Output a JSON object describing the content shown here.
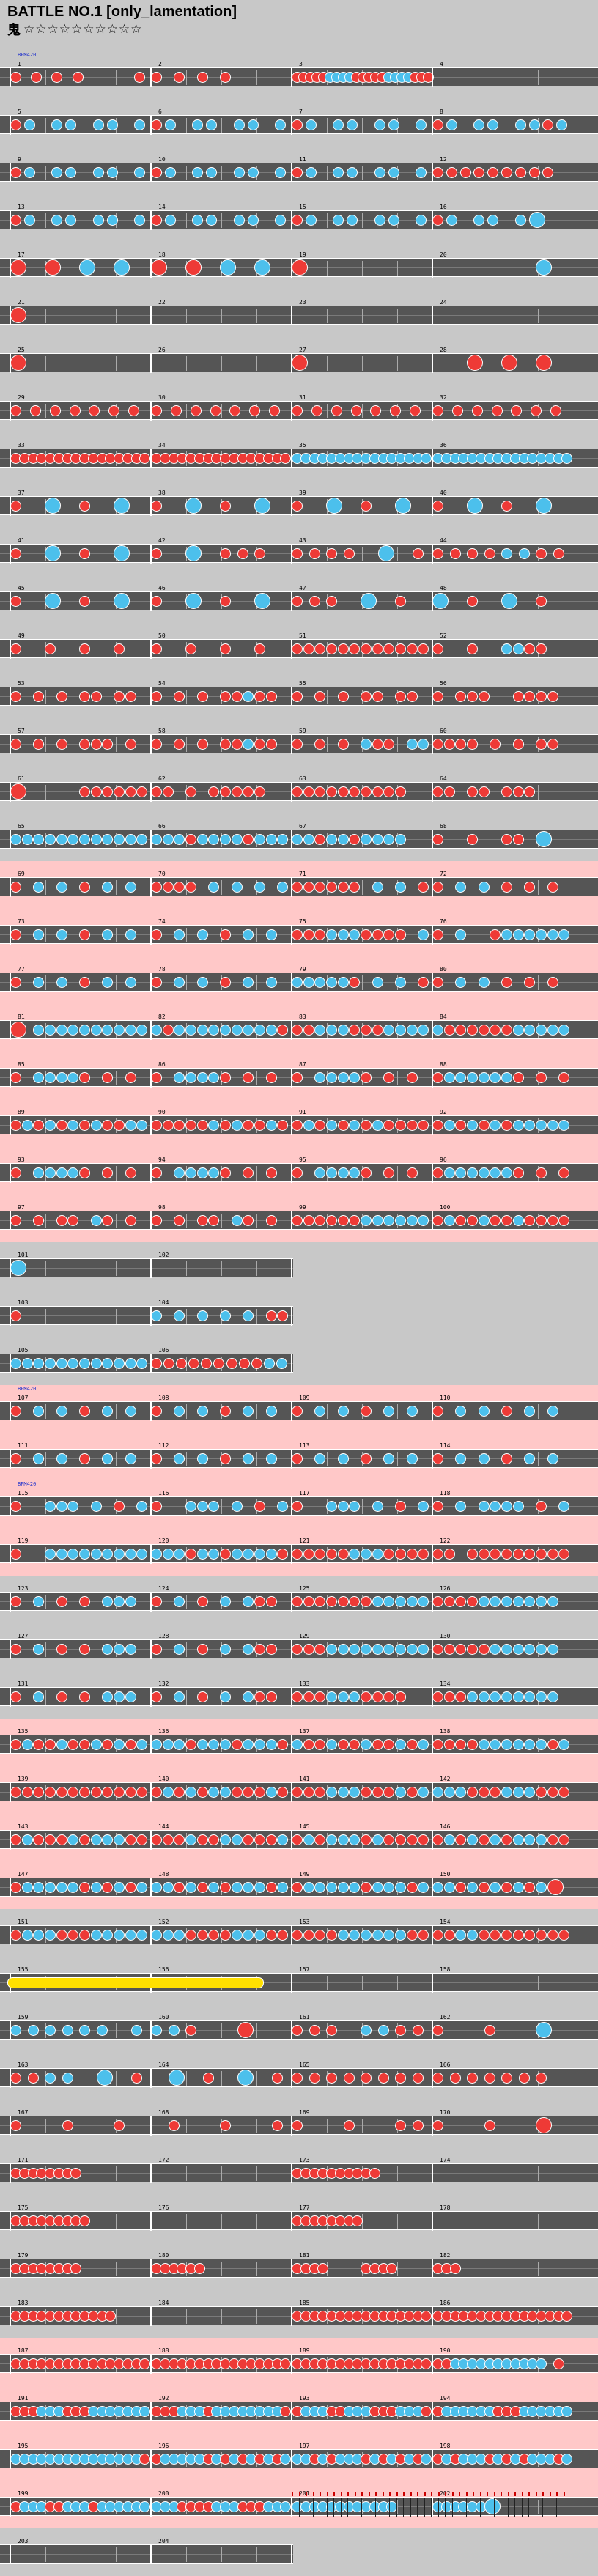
{
  "header": {
    "title": "BATTLE NO.1 [only_lamentation]",
    "difficulty_label": "鬼",
    "stars": "☆☆☆☆☆☆☆☆☆☆"
  },
  "colors": {
    "don": "#ee3a36",
    "ka": "#4cc0ec",
    "roll": "#ffe000",
    "lane": "#555555",
    "pink_row": "#ffc8c8"
  },
  "bpm_markers": [
    {
      "row": 0,
      "text": "BPM420"
    },
    {
      "row": 28,
      "text": "BPM420"
    },
    {
      "row": 30,
      "text": "BPM420"
    }
  ],
  "rows": [
    {
      "m": [
        "1",
        "2",
        "3",
        "4"
      ],
      "pink": false,
      "pat": "d..d..d..d........d.|d..d..d..d........|dddddkkkkdddddkkkkddd|"
    },
    {
      "m": [
        "5",
        "6",
        "7",
        "8"
      ],
      "pink": false,
      "pat": "dk.kk.kk.k|dk.kk.kk.k|dk.kk.kk.k|dk.kk.kkdk"
    },
    {
      "m": [
        "9",
        "10",
        "11",
        "12"
      ],
      "pink": false,
      "pat": "dk.kk.kk.k|dk.kk.kk.k|dk.kk.kk.k|ddddddddd."
    },
    {
      "m": [
        "13",
        "14",
        "15",
        "16"
      ],
      "pink": false,
      "pat": "dk.kk.kk.k|dk.kk.kk.k|dk.kk.kk.k|dk.kk.kK.."
    },
    {
      "m": [
        "17",
        "18",
        "19",
        "20"
      ],
      "pink": false,
      "pat": "D.D.K.K.|D.D.K.K.|D.......|......K."
    },
    {
      "m": [
        "21",
        "22",
        "23",
        "24"
      ],
      "pink": false,
      "pat": "D.......|........|........|........"
    },
    {
      "m": [
        "25",
        "26",
        "27",
        "28"
      ],
      "pink": false,
      "pat": "D.......|........|D.......|..D.D.D."
    },
    {
      "m": [
        "29",
        "30",
        "31",
        "32"
      ],
      "pink": false,
      "pat": "d.d.d.d.d.d.d.|d.d.d.d.d.d.d.|d.d.d.d.d.d.d.|d.d.d.d.d.d.d."
    },
    {
      "m": [
        "33",
        "34",
        "35",
        "36"
      ],
      "pink": false,
      "pat": "dddddddddddddddd|dddddddddddddddd|kkkkkkkkkkkkkkkk|kkkkkkkkkkkkkkkk"
    },
    {
      "m": [
        "37",
        "38",
        "39",
        "40"
      ],
      "pink": false,
      "pat": "d.K.d.K.|d.K.d.K.|d.K.d.K.|d.K.d.K."
    },
    {
      "m": [
        "41",
        "42",
        "43",
        "44"
      ],
      "pink": false,
      "pat": "d.K.d.K.|d.K.ddd.|dddd.K.d|ddddkkdd"
    },
    {
      "m": [
        "45",
        "46",
        "47",
        "48"
      ],
      "pink": false,
      "pat": "d.K.d.K.|d.K.d.K.|ddd.K.d.|K.d.K.d."
    },
    {
      "m": [
        "49",
        "50",
        "51",
        "52"
      ],
      "pink": false,
      "pat": "d..d..d..d..|d..d..d..d..|dddddddddddd|d..d..kkdd.."
    },
    {
      "m": [
        "53",
        "54",
        "55",
        "56"
      ],
      "pink": false,
      "pat": "d.d.d.dd.dd.|d.d.d.ddkdd.|d.d.d.dd.dd.|d.ddd..dddd."
    },
    {
      "m": [
        "57",
        "58",
        "59",
        "60"
      ],
      "pink": false,
      "pat": "d.d.d.ddd.d.|d.d.d.ddkdd.|d.d.d.kdd.kk|dddd.d.d.dd."
    },
    {
      "m": [
        "61",
        "62",
        "63",
        "64"
      ],
      "pink": false,
      "pat": "D.....dddddd|dd.d.ddddd..|dddddddddd..|dd.dd.ddd..."
    },
    {
      "m": [
        "65",
        "66",
        "67",
        "68"
      ],
      "pink": false,
      "pat": "kkkkkkkkkkkk|kkkdkkkkdkkk|kkdkkdkkkk..|d..d..dd.K.."
    },
    {
      "m": [
        "69",
        "70",
        "71",
        "72"
      ],
      "pink": true,
      "pat": "d.k.k.d.k.k.|dddd.k.k.k.k|dddddd.k.k.d|d.k.k.d.d.d."
    },
    {
      "m": [
        "73",
        "74",
        "75",
        "76"
      ],
      "pink": true,
      "pat": "d.k.k.d.k.k.|d.k.k.d.k.k.|dddkkkdddd.k|d.k..dkkkkkk"
    },
    {
      "m": [
        "77",
        "78",
        "79",
        "80"
      ],
      "pink": true,
      "pat": "d.k.k.d.k.k.|d.k.k.d.k.k.|kkkkkd.k.k.d|d.k.k.d.d.d."
    },
    {
      "m": [
        "81",
        "82",
        "83",
        "84"
      ],
      "pink": true,
      "pat": "D.kkkkkkkkkk|kdkkkkkkkkkd|ddkkkdddkkkk|kddddddkkkkk"
    },
    {
      "m": [
        "85",
        "86",
        "87",
        "88"
      ],
      "pink": true,
      "pat": "d.kkkkd.d.d.|d.kkkkd.d.d.|d.kkkkd.d.d.|dkkkkkkd.d.d"
    },
    {
      "m": [
        "89",
        "90",
        "91",
        "92"
      ],
      "pink": true,
      "pat": "dkdkdkdkddkk|dddddkdkddkd|dkdkdkdkdddd|dkdkdkdkkkkk"
    },
    {
      "m": [
        "93",
        "94",
        "95",
        "96"
      ],
      "pink": true,
      "pat": "d.kkkkd.d.d.|d.kkkkd.d.d.|d.kkkkd.d.d.|dkkkkkkd.d.d"
    },
    {
      "m": [
        "97",
        "98",
        "99",
        "100"
      ],
      "pink": true,
      "pat": "d.d.dd.kd.d.|d.d.dd.kd.d.|ddddddkkkkkk|dkddkddkdddd"
    },
    {
      "m": [
        "101",
        "102"
      ],
      "pink": false,
      "pat": "K.......|........"
    },
    {
      "m": [
        "103",
        "104"
      ],
      "pink": false,
      "pat": "d.......|k.k.k.k.k.dd"
    },
    {
      "m": [
        "105",
        "106"
      ],
      "pink": false,
      "pat": "kkkkkkkkkkkk|dddddddddkk"
    },
    {
      "m": [
        "107",
        "108",
        "109",
        "110"
      ],
      "pink": true,
      "pat": "d.k.k.d.k.k.|d.k.k.d.k.k.|d.k.k.d.k.k.|d.k.k.d.k.k."
    },
    {
      "m": [
        "111",
        "112",
        "113",
        "114"
      ],
      "pink": true,
      "pat": "d.k.k.d.k.k.|d.k.k.d.k.k.|d.k.k.d.k.k.|d.k.k.d.k.k."
    },
    {
      "m": [
        "115",
        "116",
        "117",
        "118"
      ],
      "pink": true,
      "pat": "d..kkk.k.d.k|d..kkk.k.d.k|d..kkk.k.d.k|d.k.kkkk.d.k"
    },
    {
      "m": [
        "119",
        "120",
        "121",
        "122"
      ],
      "pink": true,
      "pat": "d..kkkkkkkkk|kkkdkkdkkkkd|dddddkkkdddd|dd.ddddddddd"
    },
    {
      "m": [
        "123",
        "124",
        "125",
        "126"
      ],
      "pink": false,
      "pat": "d.k.d.d.kkk.|d.k.d.k.kdd.|dddddddkkkkk|ddddkkkkkkk."
    },
    {
      "m": [
        "127",
        "128",
        "129",
        "130"
      ],
      "pink": false,
      "pat": "d.k.d.d.kkk.|d.k.d.k.kdd.|dddkkkkkkkkk|dddddkkkkkk."
    },
    {
      "m": [
        "131",
        "132",
        "133",
        "134"
      ],
      "pink": false,
      "pat": "d.k.d.d.kkk.|d.k.d.k.kdd.|dddkkkdddd..|dddkkkkkkkk."
    },
    {
      "m": [
        "135",
        "136",
        "137",
        "138"
      ],
      "pink": true,
      "pat": "dkddkddkdkdk|kkkdkkkdkkkd|kddkddkddkdk|ddddkkkkkkdk"
    },
    {
      "m": [
        "139",
        "140",
        "141",
        "142"
      ],
      "pink": true,
      "pat": "dddddddddddd|dkdkdkkdddkd|dddkkkdddkdk|kkkdddkkkddd"
    },
    {
      "m": [
        "143",
        "144",
        "145",
        "146"
      ],
      "pink": true,
      "pat": "dkdddkdkkkdd|dddkddkkdddk|dkdkkkdkdddd|dkdkdkdkkkdd"
    },
    {
      "m": [
        "147",
        "148",
        "149",
        "150"
      ],
      "pink": true,
      "pat": "dkkkkkdkdkdk|kkdkdkdkkkdk|dkkkkkdkkkdk|kkdkdkdkdkD."
    },
    {
      "m": [
        "151",
        "152",
        "153",
        "154"
      ],
      "pink": false,
      "pat": "dkkkdddkkkkk|kkkddddkkkdd|ddddkkkkkkdd|ddkkdddddddd"
    },
    {
      "m": [
        "155",
        "156",
        "157",
        "158"
      ],
      "pink": false,
      "roll": [
        0,
        1.8
      ],
      "pat": "........|........|........|........"
    },
    {
      "m": [
        "159",
        "160",
        "161",
        "162"
      ],
      "pink": false,
      "pat": "kkkkkk.k|kkd..D..|ddd.kkdd|d..d..K."
    },
    {
      "m": [
        "163",
        "164",
        "165",
        "166"
      ],
      "pink": false,
      "pat": "ddkk.K.d|.K.d.K.d|dddddddd|ddddddd."
    },
    {
      "m": [
        "167",
        "168",
        "169",
        "170"
      ],
      "pink": false,
      "pat": "d..d..d.|.d..d..d|d..d..dd|d..d..D."
    },
    {
      "m": [
        "171",
        "172",
        "173",
        "174"
      ],
      "pink": false,
      "pat": "dddddddd........|................|dddddddddd......|................"
    },
    {
      "m": [
        "175",
        "176",
        "177",
        "178"
      ],
      "pink": false,
      "pat": "ddddddddd.......|................|dddddddd........|................"
    },
    {
      "m": [
        "179",
        "180",
        "181",
        "182"
      ],
      "pink": false,
      "pat": "dddddddd........|dddddd..........|dddd....dddd....|ddd............."
    },
    {
      "m": [
        "183",
        "184",
        "185",
        "186"
      ],
      "pink": false,
      "pat": "dddddddddddd....|................|dddddddddddddddd|dddddddddddddddd"
    },
    {
      "m": [
        "187",
        "188",
        "189",
        "190"
      ],
      "pink": true,
      "pat": "dddddddddddddddd|dddddddddddddddd|dddddddddddddddd|ddkkkkkkkkkkk.d."
    },
    {
      "m": [
        "191",
        "192",
        "193",
        "194"
      ],
      "pink": true,
      "pat": "dddkkkdddkkkkkkk|dddkkkdkkkkkkkkd|dkkkddkkkdddkkkd|dkkkkkkdddkkkkkk"
    },
    {
      "m": [
        "195",
        "196",
        "197",
        "198"
      ],
      "pink": true,
      "pat": "kkkkkkkkkkkkkkkd|dkkkkkdkdkdkdkdk|kkdkdkkkdkdkdkdk|dkdkkkdkdkdkkkdk"
    },
    {
      "m": [
        "199",
        "200",
        "201",
        "202"
      ],
      "pink": true,
      "pat": "dkkkddkkkdkkkkkk|kkkddddkkkdddkkk|kkkkkkkkkkkk....|kkkkkkK........."
    },
    {
      "m": [
        "203",
        "204"
      ],
      "pink": false,
      "pat": "........|........"
    }
  ]
}
